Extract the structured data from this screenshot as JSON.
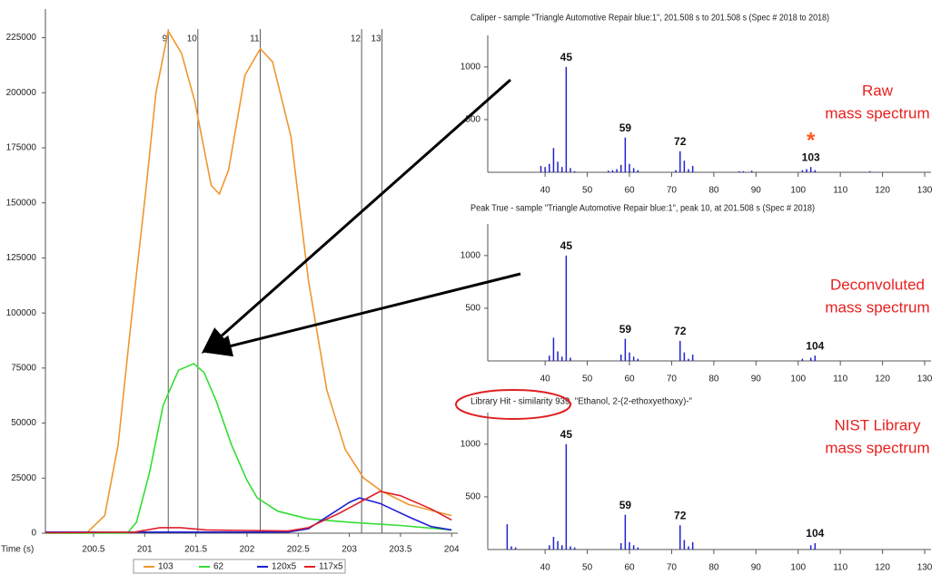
{
  "chart_data": [
    {
      "type": "line",
      "xlabel": "Time (s)",
      "xlim": [
        200.03,
        204.06
      ],
      "xticks": [
        200.5,
        201,
        201.5,
        202,
        202.5,
        203,
        203.5,
        204
      ],
      "ylim": [
        0,
        238000
      ],
      "yticks": [
        0,
        25000,
        50000,
        75000,
        100000,
        125000,
        150000,
        175000,
        200000,
        225000
      ],
      "peak_markers": [
        {
          "x": 201.23,
          "label": "9"
        },
        {
          "x": 201.52,
          "label": "10"
        },
        {
          "x": 202.13,
          "label": "11"
        },
        {
          "x": 203.12,
          "label": "12"
        },
        {
          "x": 203.32,
          "label": "13"
        }
      ],
      "series": [
        {
          "name": "103",
          "color": "#f0962e",
          "x": [
            200.03,
            200.43,
            200.61,
            200.74,
            200.87,
            201.01,
            201.11,
            201.23,
            201.36,
            201.49,
            201.65,
            201.73,
            201.82,
            201.98,
            202.13,
            202.25,
            202.43,
            202.6,
            202.78,
            202.96,
            203.14,
            203.32,
            203.58,
            204
          ],
          "values": [
            0,
            0,
            8000,
            40000,
            97000,
            155000,
            200000,
            228000,
            218000,
            196000,
            158000,
            154000,
            165000,
            208000,
            220000,
            214000,
            180000,
            115000,
            65000,
            38000,
            25000,
            19000,
            13000,
            8000
          ]
        },
        {
          "name": "62",
          "color": "#33dd33",
          "x": [
            200.03,
            200.83,
            200.92,
            201.05,
            201.18,
            201.33,
            201.48,
            201.58,
            201.7,
            201.85,
            202.0,
            202.1,
            202.3,
            202.6,
            203.0,
            203.5,
            204
          ],
          "values": [
            0,
            0,
            5000,
            28000,
            58000,
            74000,
            77000,
            73000,
            60000,
            40000,
            24000,
            16000,
            10000,
            6500,
            5000,
            3500,
            1500
          ]
        },
        {
          "name": "120x5",
          "color": "#1f1fd6",
          "x": [
            200.03,
            202.4,
            202.6,
            202.8,
            203.0,
            203.1,
            203.3,
            203.6,
            203.8,
            204
          ],
          "values": [
            500,
            500,
            2000,
            8000,
            14000,
            16000,
            13500,
            7000,
            3000,
            1500
          ]
        },
        {
          "name": "117x5",
          "color": "#e0202a",
          "x": [
            200.03,
            200.9,
            201.15,
            201.35,
            201.6,
            202.4,
            202.6,
            202.9,
            203.1,
            203.3,
            203.5,
            203.8,
            204
          ],
          "values": [
            200,
            500,
            2500,
            2500,
            1500,
            1000,
            2500,
            9000,
            14000,
            19000,
            17000,
            11000,
            6000
          ]
        }
      ]
    },
    {
      "type": "bar",
      "title": "Caliper - sample \"Triangle Automotive Repair blue:1\",  201.508 s to 201.508 s (Spec # 2018 to 2018)",
      "xlim": [
        26.4,
        131.5
      ],
      "xticks": [
        40,
        50,
        60,
        70,
        80,
        90,
        100,
        110,
        120,
        130
      ],
      "ylim": [
        0,
        1300
      ],
      "yticks": [
        500,
        1000
      ],
      "color": "#2222cc",
      "x": [
        39,
        40,
        41,
        42,
        43,
        44,
        45,
        46,
        47,
        55,
        56,
        57,
        58,
        59,
        60,
        61,
        62,
        71,
        72,
        73,
        74,
        75,
        86,
        87,
        89,
        101,
        102,
        103,
        104,
        117
      ],
      "values": [
        60,
        50,
        80,
        230,
        100,
        50,
        1000,
        40,
        10,
        15,
        20,
        30,
        70,
        330,
        80,
        40,
        20,
        20,
        200,
        110,
        30,
        60,
        10,
        10,
        15,
        20,
        30,
        50,
        20,
        10
      ],
      "peak_labels": [
        45,
        59,
        72,
        103
      ],
      "flag": {
        "x": 103,
        "label": "*"
      },
      "annotation": [
        "Raw",
        "mass spectrum"
      ]
    },
    {
      "type": "bar",
      "title": "Peak True - sample \"Triangle Automotive Repair blue:1\", peak 10, at 201.508 s (Spec # 2018)",
      "xlim": [
        26.4,
        131.5
      ],
      "xticks": [
        40,
        50,
        60,
        70,
        80,
        90,
        100,
        110,
        120,
        130
      ],
      "ylim": [
        0,
        1300
      ],
      "yticks": [
        500,
        1000
      ],
      "color": "#2222cc",
      "x": [
        41,
        42,
        43,
        44,
        45,
        46,
        58,
        59,
        60,
        61,
        62,
        72,
        73,
        74,
        75,
        101,
        103,
        104
      ],
      "values": [
        50,
        220,
        90,
        40,
        1000,
        30,
        60,
        210,
        80,
        40,
        20,
        190,
        80,
        20,
        60,
        20,
        30,
        50
      ],
      "peak_labels": [
        45,
        59,
        72,
        104
      ],
      "annotation": [
        "Deconvoluted",
        "mass spectrum"
      ]
    },
    {
      "type": "bar",
      "title": "Library Hit - similarity 939, \"Ethanol, 2-(2-ethoxyethoxy)-\"",
      "xlim": [
        26.4,
        131.5
      ],
      "xticks": [
        40,
        50,
        60,
        70,
        80,
        90,
        100,
        110,
        120,
        130
      ],
      "ylim": [
        0,
        1300
      ],
      "yticks": [
        500,
        1000
      ],
      "color": "#2222cc",
      "x": [
        31,
        32,
        33,
        41,
        42,
        43,
        44,
        45,
        46,
        47,
        58,
        59,
        60,
        61,
        62,
        72,
        73,
        74,
        75,
        103,
        104
      ],
      "values": [
        240,
        30,
        20,
        40,
        120,
        80,
        40,
        1000,
        30,
        20,
        60,
        330,
        70,
        40,
        20,
        230,
        90,
        30,
        70,
        40,
        60
      ],
      "peak_labels": [
        45,
        59,
        72,
        104
      ],
      "annotation": [
        "NIST Library",
        "mass spectrum"
      ]
    }
  ]
}
